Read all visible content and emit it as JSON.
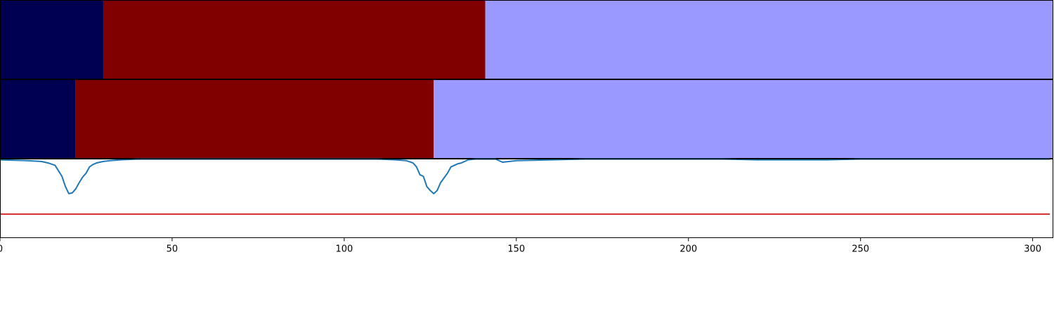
{
  "chart_data": [
    {
      "type": "heatmap",
      "panel": "segment-bar-top",
      "xlim": [
        0,
        306
      ],
      "segments": [
        {
          "start": 0,
          "end": 30,
          "color": "#000050"
        },
        {
          "start": 30,
          "end": 141,
          "color": "#800000"
        },
        {
          "start": 141,
          "end": 306,
          "color": "#9999ff"
        }
      ]
    },
    {
      "type": "heatmap",
      "panel": "segment-bar-middle",
      "xlim": [
        0,
        306
      ],
      "segments": [
        {
          "start": 0,
          "end": 22,
          "color": "#000050"
        },
        {
          "start": 22,
          "end": 126,
          "color": "#800000"
        },
        {
          "start": 126,
          "end": 306,
          "color": "#9999ff"
        }
      ]
    },
    {
      "type": "line",
      "panel": "signal-plot",
      "xlim": [
        0,
        306
      ],
      "ylim": [
        -1.0,
        0.0
      ],
      "grid": false,
      "x_ticks": [
        0,
        50,
        100,
        150,
        200,
        250,
        300
      ],
      "x_tick_labels": [
        "0",
        "50",
        "100",
        "150",
        "200",
        "250",
        "300"
      ],
      "series": [
        {
          "color": "#1f77b4",
          "x": [
            0,
            8,
            12,
            14,
            16,
            17,
            18,
            19,
            20,
            21,
            22,
            23,
            24,
            25,
            26,
            27,
            28,
            30,
            32,
            35,
            40,
            60,
            100,
            110,
            115,
            118,
            120,
            121,
            122,
            123,
            124,
            125,
            126,
            127,
            128,
            129,
            130,
            131,
            132,
            133,
            134,
            135,
            136,
            138,
            140,
            142,
            144,
            145,
            146,
            150,
            160,
            170,
            200,
            210,
            220,
            230,
            240,
            250,
            280,
            305
          ],
          "y": [
            -0.01,
            -0.02,
            -0.03,
            -0.05,
            -0.08,
            -0.15,
            -0.22,
            -0.35,
            -0.44,
            -0.43,
            -0.38,
            -0.3,
            -0.23,
            -0.18,
            -0.1,
            -0.07,
            -0.05,
            -0.03,
            -0.02,
            -0.01,
            0.0,
            0.0,
            0.0,
            0.0,
            -0.01,
            -0.02,
            -0.05,
            -0.1,
            -0.2,
            -0.22,
            -0.35,
            -0.4,
            -0.44,
            -0.4,
            -0.3,
            -0.24,
            -0.18,
            -0.1,
            -0.08,
            -0.06,
            -0.05,
            -0.03,
            -0.01,
            0.0,
            0.0,
            0.0,
            0.0,
            -0.02,
            -0.04,
            -0.02,
            -0.01,
            0.0,
            0.0,
            0.0,
            -0.01,
            -0.01,
            -0.01,
            0.0,
            0.0,
            0.0
          ]
        },
        {
          "color": "#d62728",
          "x": [
            0,
            305
          ],
          "y": [
            -0.7,
            -0.7
          ]
        }
      ]
    }
  ]
}
